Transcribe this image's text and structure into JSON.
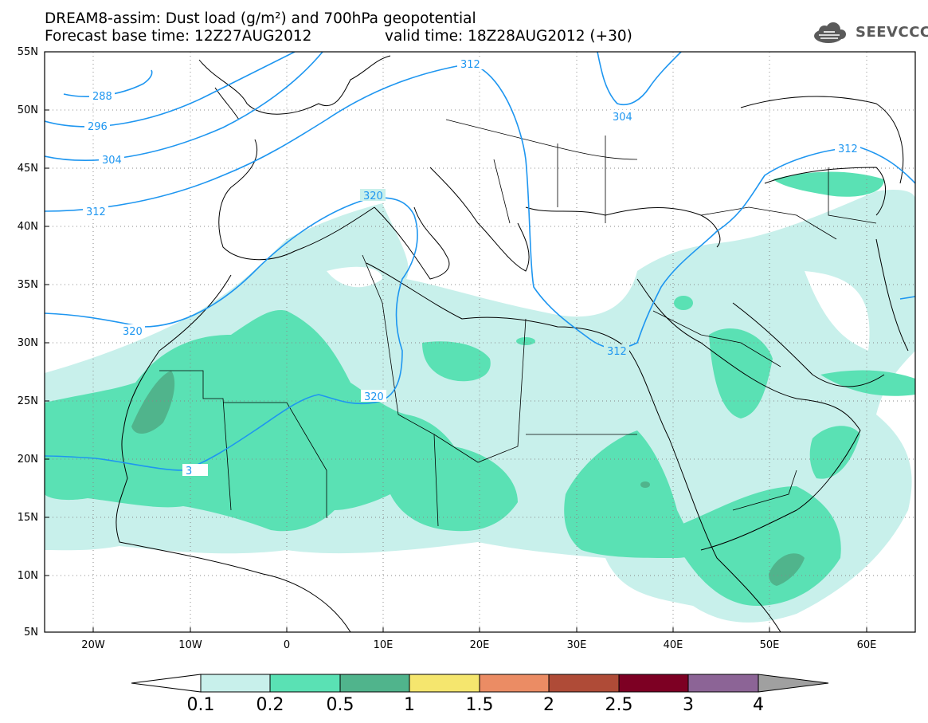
{
  "title": {
    "line1": "DREAM8-assim: Dust load (g/m²) and 700hPa geopotential",
    "line2": "Forecast base time: 12Z27AUG2012",
    "valid": "valid time: 18Z28AUG2012 (+30)"
  },
  "logo": {
    "text": "SEEVCCC",
    "icon": "cloud-icon"
  },
  "map": {
    "lat_labels": [
      "55N",
      "50N",
      "45N",
      "40N",
      "35N",
      "30N",
      "25N",
      "20N",
      "15N",
      "10N",
      "5N"
    ],
    "lon_labels": [
      "20W",
      "10W",
      "0",
      "10E",
      "20E",
      "30E",
      "40E",
      "50E",
      "60E"
    ],
    "lon_range": [
      -25,
      65
    ],
    "lat_range": [
      5,
      55
    ],
    "grid": true
  },
  "contours": {
    "labels": [
      "288",
      "296",
      "304",
      "312",
      "320",
      "312",
      "320",
      "320",
      "312",
      "304",
      "312",
      "3"
    ]
  },
  "colorbar": {
    "ticks": [
      "0.1",
      "0.2",
      "0.5",
      "1",
      "1.5",
      "2",
      "2.5",
      "3",
      "4"
    ],
    "colors": [
      "#ffffff",
      "#c8f0eb",
      "#5ae1b4",
      "#50b48c",
      "#f5e66e",
      "#eb8c64",
      "#af4b37",
      "#7d0023",
      "#8c6496",
      "#a0a0a0"
    ]
  }
}
